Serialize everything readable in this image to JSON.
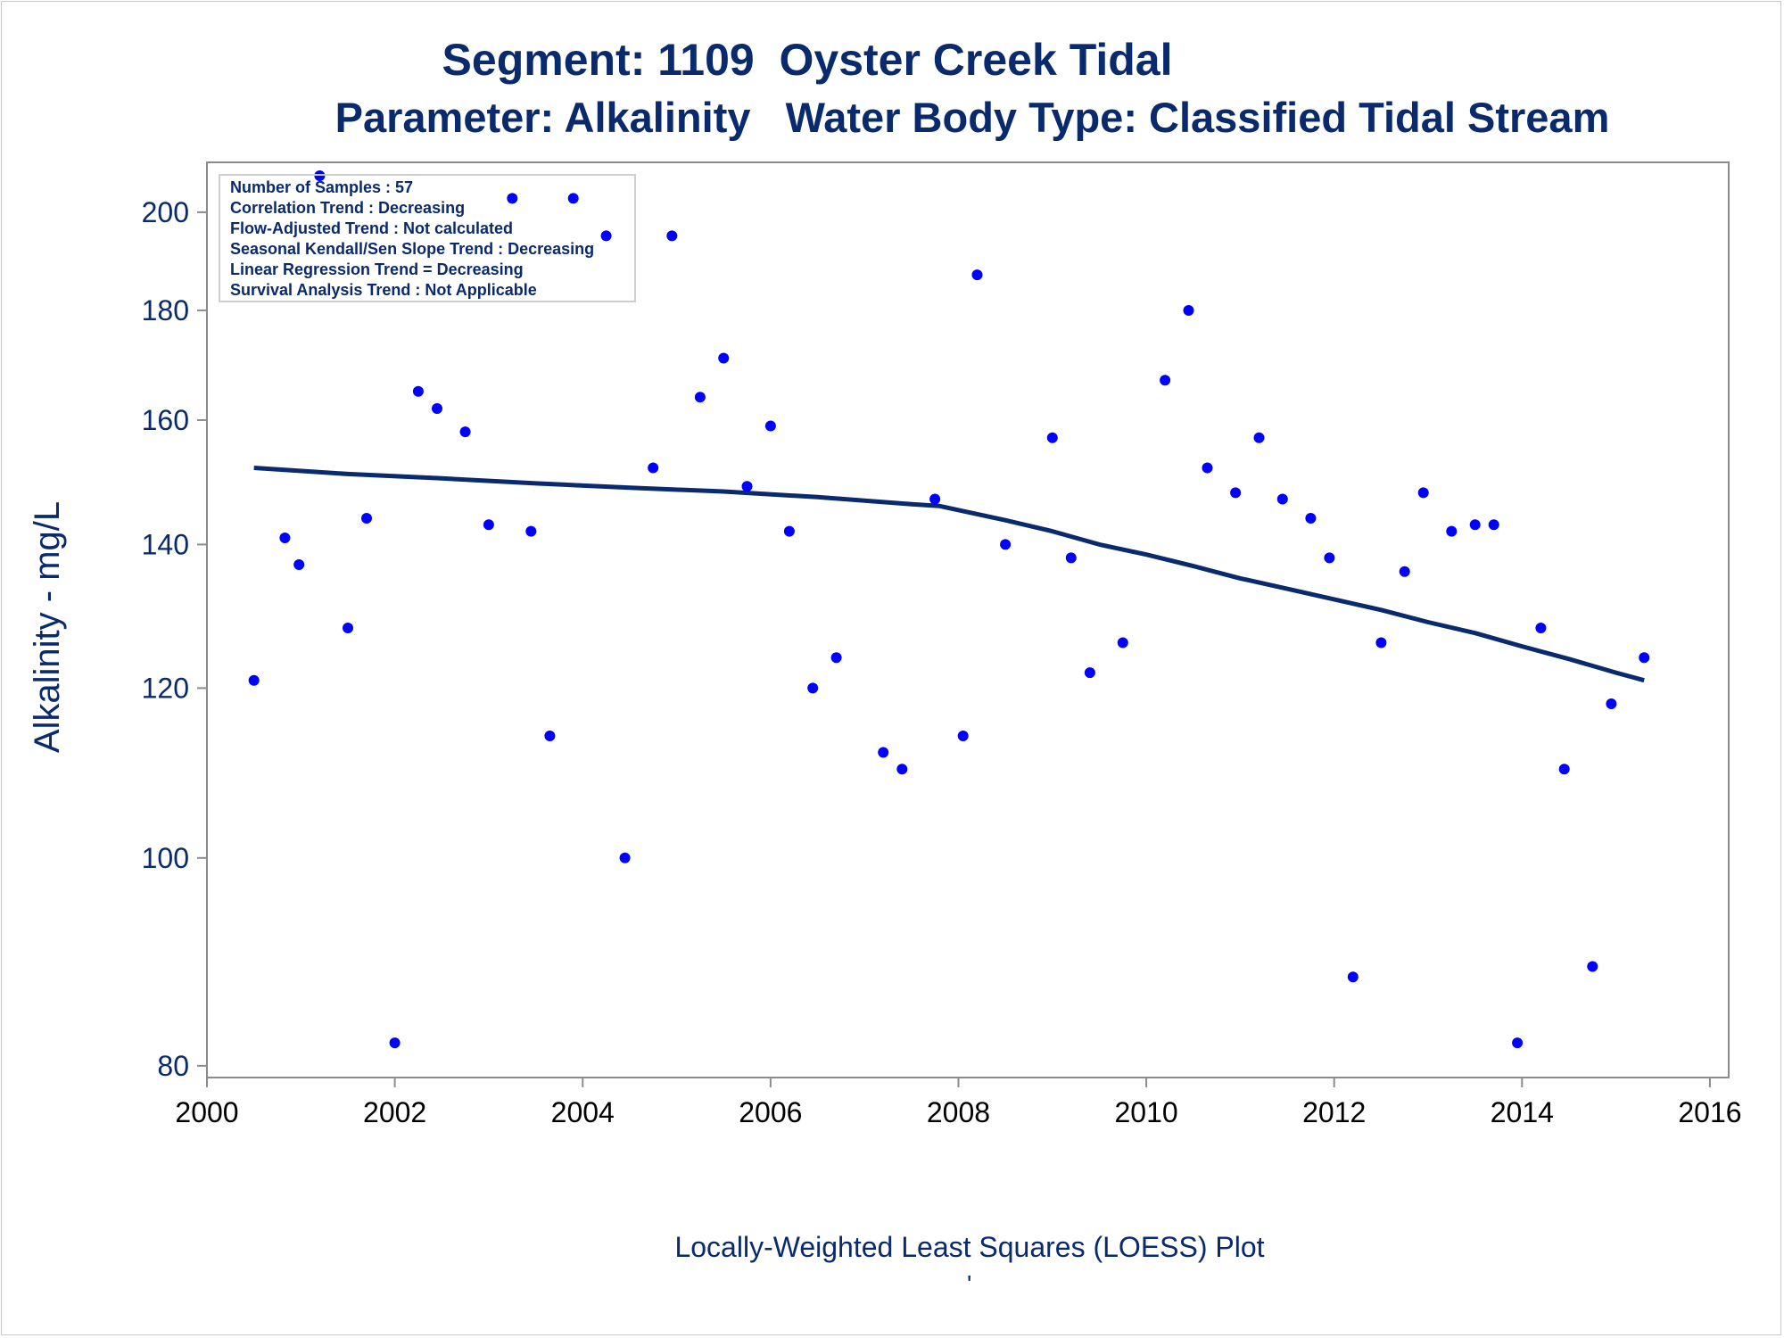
{
  "title_line1": "Segment: 1109  Oyster Creek Tidal",
  "title_line2": "Parameter: Alkalinity   Water Body Type: Classified Tidal Stream",
  "footnote": "Locally-Weighted Least Squares (LOESS) Plot",
  "footnote_mark": "'",
  "inset": [
    "Number of Samples : 57",
    "Correlation Trend : Decreasing",
    "Flow-Adjusted Trend : Not calculated",
    "Seasonal Kendall/Sen Slope Trend : Decreasing",
    "Linear Regression Trend = Decreasing",
    "Survival Analysis Trend : Not Applicable"
  ],
  "colors": {
    "text": "#0a2a6e",
    "points": "#0000ff",
    "loess": "#0a2a6e",
    "axis": "#8c8c8c"
  },
  "chart_data": {
    "type": "scatter",
    "title": "Segment: 1109  Oyster Creek Tidal",
    "subtitle": "Parameter: Alkalinity   Water Body Type: Classified Tidal Stream",
    "xlabel": "",
    "ylabel": "Alkalinity - mg/L",
    "y_scale": "log",
    "xlim": [
      2000,
      2016.2
    ],
    "ylim": [
      79,
      211
    ],
    "x_ticks": [
      2000,
      2002,
      2004,
      2006,
      2008,
      2010,
      2012,
      2014,
      2016
    ],
    "y_ticks": [
      80,
      100,
      120,
      140,
      160,
      180,
      200
    ],
    "grid": false,
    "legend": "none",
    "series": [
      {
        "type": "scatter",
        "x": [
          2000.5,
          2000.83,
          2000.98,
          2001.2,
          2001.5,
          2001.7,
          2002.0,
          2002.25,
          2002.45,
          2002.75,
          2003.0,
          2003.25,
          2003.45,
          2003.65,
          2003.9,
          2004.25,
          2004.45,
          2004.75,
          2004.95,
          2005.25,
          2005.5,
          2005.75,
          2006.0,
          2006.2,
          2006.45,
          2006.7,
          2007.2,
          2007.4,
          2007.75,
          2008.05,
          2008.2,
          2008.5,
          2009.0,
          2009.2,
          2009.4,
          2009.75,
          2010.2,
          2010.45,
          2010.65,
          2010.95,
          2011.2,
          2011.45,
          2011.75,
          2011.95,
          2012.2,
          2012.5,
          2012.75,
          2012.95,
          2013.25,
          2013.5,
          2013.7,
          2013.95,
          2014.2,
          2014.45,
          2014.75,
          2014.95,
          2015.3
        ],
        "y": [
          121,
          141,
          137,
          208,
          128,
          144,
          82,
          165,
          162,
          158,
          143,
          203,
          142,
          114,
          203,
          195,
          100,
          152,
          195,
          164,
          171,
          149,
          159,
          142,
          120,
          124,
          112,
          110,
          147,
          114,
          187,
          140,
          157,
          138,
          122,
          126,
          167,
          180,
          152,
          148,
          157,
          147,
          144,
          138,
          88,
          126,
          136,
          148,
          142,
          143,
          143,
          82,
          128,
          110,
          89,
          118,
          124
        ]
      },
      {
        "type": "line",
        "name": "",
        "x": [
          2000.5,
          2001.5,
          2002.5,
          2003.5,
          2004.5,
          2005.5,
          2006.5,
          2007.5,
          2007.8,
          2008.5,
          2009.0,
          2009.5,
          2010.0,
          2010.5,
          2011.0,
          2011.5,
          2012.0,
          2012.5,
          2013.0,
          2013.5,
          2014.0,
          2014.5,
          2015.0,
          2015.3
        ],
        "y": [
          152,
          151,
          150.3,
          149.5,
          148.8,
          148.2,
          147.3,
          146.2,
          145.9,
          143.7,
          142,
          140,
          138.5,
          136.8,
          135,
          133.5,
          132,
          130.5,
          128.8,
          127.3,
          125.5,
          123.8,
          122,
          121
        ]
      }
    ]
  }
}
